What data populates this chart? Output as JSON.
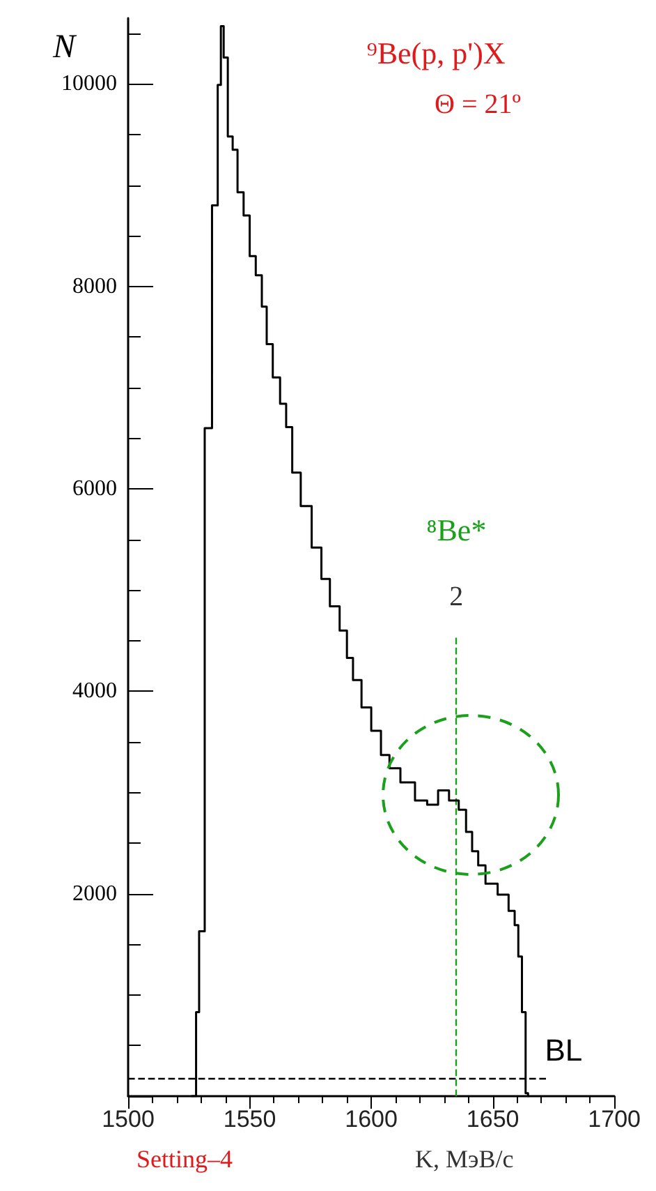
{
  "chart_data": {
    "type": "step",
    "title": "⁹Be(p, p')X",
    "subtitle": "Θ = 21º",
    "xlabel": "K, МэВ/c",
    "ylabel": "N",
    "annotations": [
      "Setting–4",
      "⁸Be*",
      "2"
    ],
    "x": [
      1526,
      1527.5,
      1528.4,
      1530,
      1533,
      1536,
      1537.7,
      1538.6,
      1540,
      1542,
      1544,
      1546,
      1549,
      1551,
      1554,
      1556,
      1558,
      1561,
      1564,
      1566,
      1569,
      1573,
      1578,
      1581,
      1585,
      1589,
      1591,
      1594,
      1598,
      1602,
      1606,
      1609,
      1615,
      1621,
      1625,
      1630,
      1634,
      1638,
      1640,
      1643,
      1645,
      1649,
      1655,
      1658,
      1660,
      1661,
      1663,
      1664,
      1665
    ],
    "values": [
      0,
      0,
      830,
      1630,
      6600,
      8800,
      9990,
      10570,
      10260,
      9480,
      9350,
      8930,
      8700,
      8300,
      8110,
      7800,
      7430,
      7100,
      6840,
      6610,
      6160,
      5830,
      5420,
      5110,
      4840,
      4600,
      4330,
      4110,
      3840,
      3610,
      3370,
      3240,
      3100,
      2920,
      2880,
      3020,
      2920,
      2830,
      2610,
      2420,
      2280,
      2100,
      1990,
      1830,
      1690,
      1380,
      830,
      30,
      0
    ],
    "color": "#000000",
    "xlim": [
      1500,
      1700
    ],
    "xticks": [
      1500,
      1550,
      1600,
      1650,
      1700
    ],
    "ylim": [
      0,
      10650
    ],
    "yticks": [
      {
        "value": 0,
        "label": null
      },
      2000,
      4000,
      6000,
      8000,
      10000
    ],
    "ref_lines": [
      {
        "axis": "y",
        "value": 180,
        "label": "BL",
        "color": "#000000",
        "line_style": "dashed"
      },
      {
        "axis": "x",
        "value": 1635,
        "color": "#1aa01a",
        "line_style": "dashed"
      }
    ],
    "grid": false
  }
}
